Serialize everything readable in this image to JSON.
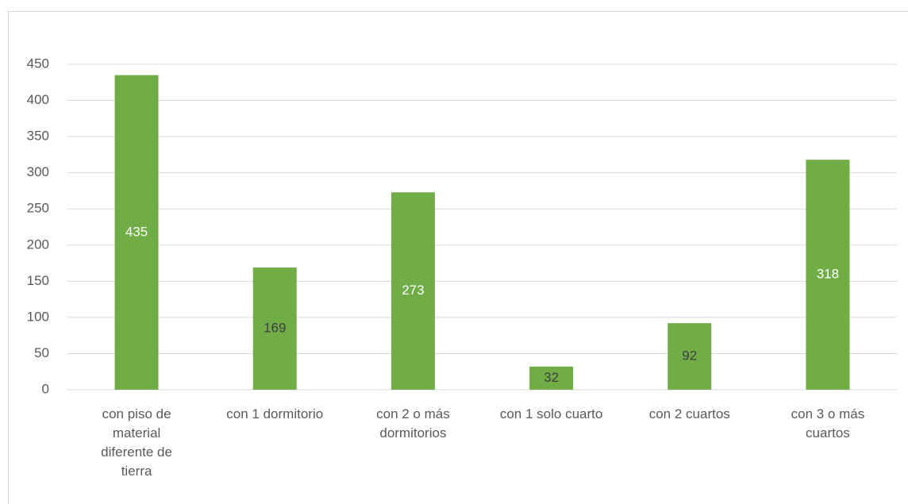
{
  "chart_data": {
    "type": "bar",
    "categories": [
      "con piso de material diferente de tierra",
      "con 1 dormitorio",
      "con 2 o más dormitorios",
      "con 1 solo cuarto",
      "con 2 cuartos",
      "con 3 o más cuartos"
    ],
    "values": [
      435,
      169,
      273,
      32,
      92,
      318
    ],
    "color": "#70ad47",
    "label_colors": [
      "#ffffff",
      "#404040",
      "#ffffff",
      "#404040",
      "#404040",
      "#ffffff"
    ],
    "ylim": [
      0,
      450
    ],
    "yticks": [
      0,
      50,
      100,
      150,
      200,
      250,
      300,
      350,
      400,
      450
    ],
    "grid": true
  }
}
